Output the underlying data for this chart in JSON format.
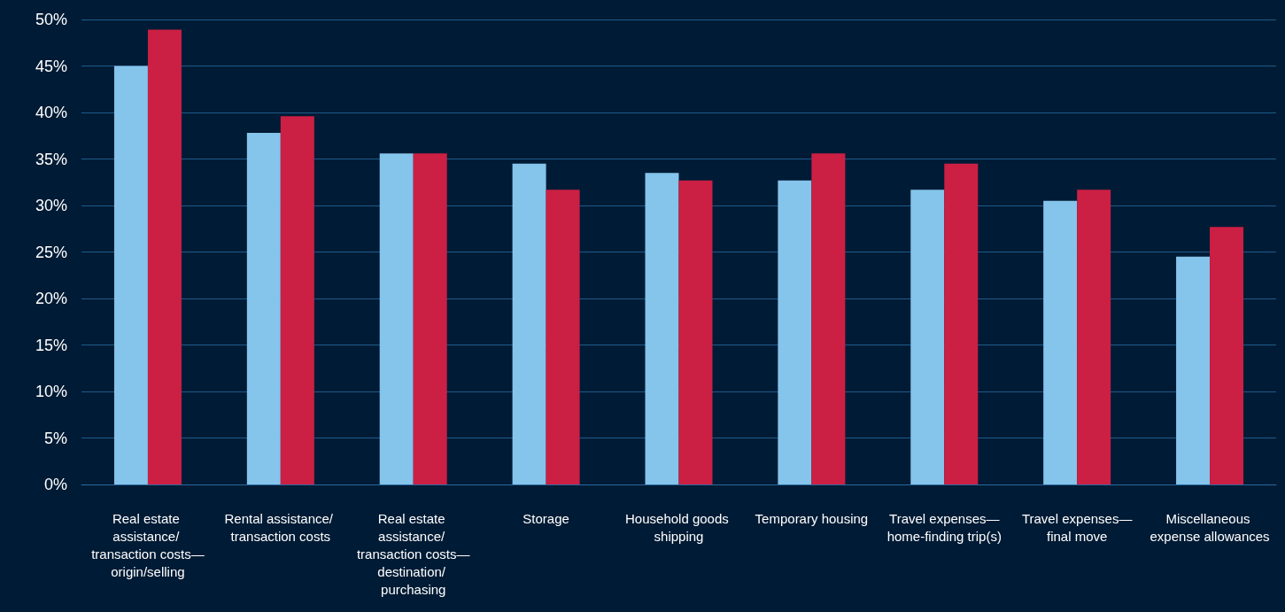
{
  "chart_data": {
    "type": "bar",
    "categories": [
      "Real estate assistance/ transaction costs—origin/selling",
      "Rental assistance/ transaction costs",
      "Real estate assistance/ transaction costs—destination/ purchasing",
      "Storage",
      "Household goods shipping",
      "Temporary housing",
      "Travel expenses—home-finding trip(s)",
      "Travel expenses—final move",
      "Miscellaneous expense allowances"
    ],
    "series": [
      {
        "color": "#85c4eb",
        "values": [
          45.0,
          37.8,
          35.6,
          34.5,
          33.5,
          32.7,
          31.7,
          30.5,
          24.5
        ]
      },
      {
        "color": "#cc1f44",
        "values": [
          48.9,
          39.6,
          35.6,
          31.7,
          32.7,
          35.6,
          34.5,
          31.7,
          27.7
        ]
      }
    ],
    "ylim": [
      0,
      50
    ],
    "yticks": [
      {
        "value": 0,
        "label": "0%"
      },
      {
        "value": 5,
        "label": "5%"
      },
      {
        "value": 10,
        "label": "10%"
      },
      {
        "value": 15,
        "label": "15%"
      },
      {
        "value": 20,
        "label": "20%"
      },
      {
        "value": 25,
        "label": "25%"
      },
      {
        "value": 30,
        "label": "30%"
      },
      {
        "value": 35,
        "label": "35%"
      },
      {
        "value": 40,
        "label": "40%"
      },
      {
        "value": 45,
        "label": "45%"
      },
      {
        "value": 50,
        "label": "50%"
      }
    ],
    "grid": "y"
  }
}
